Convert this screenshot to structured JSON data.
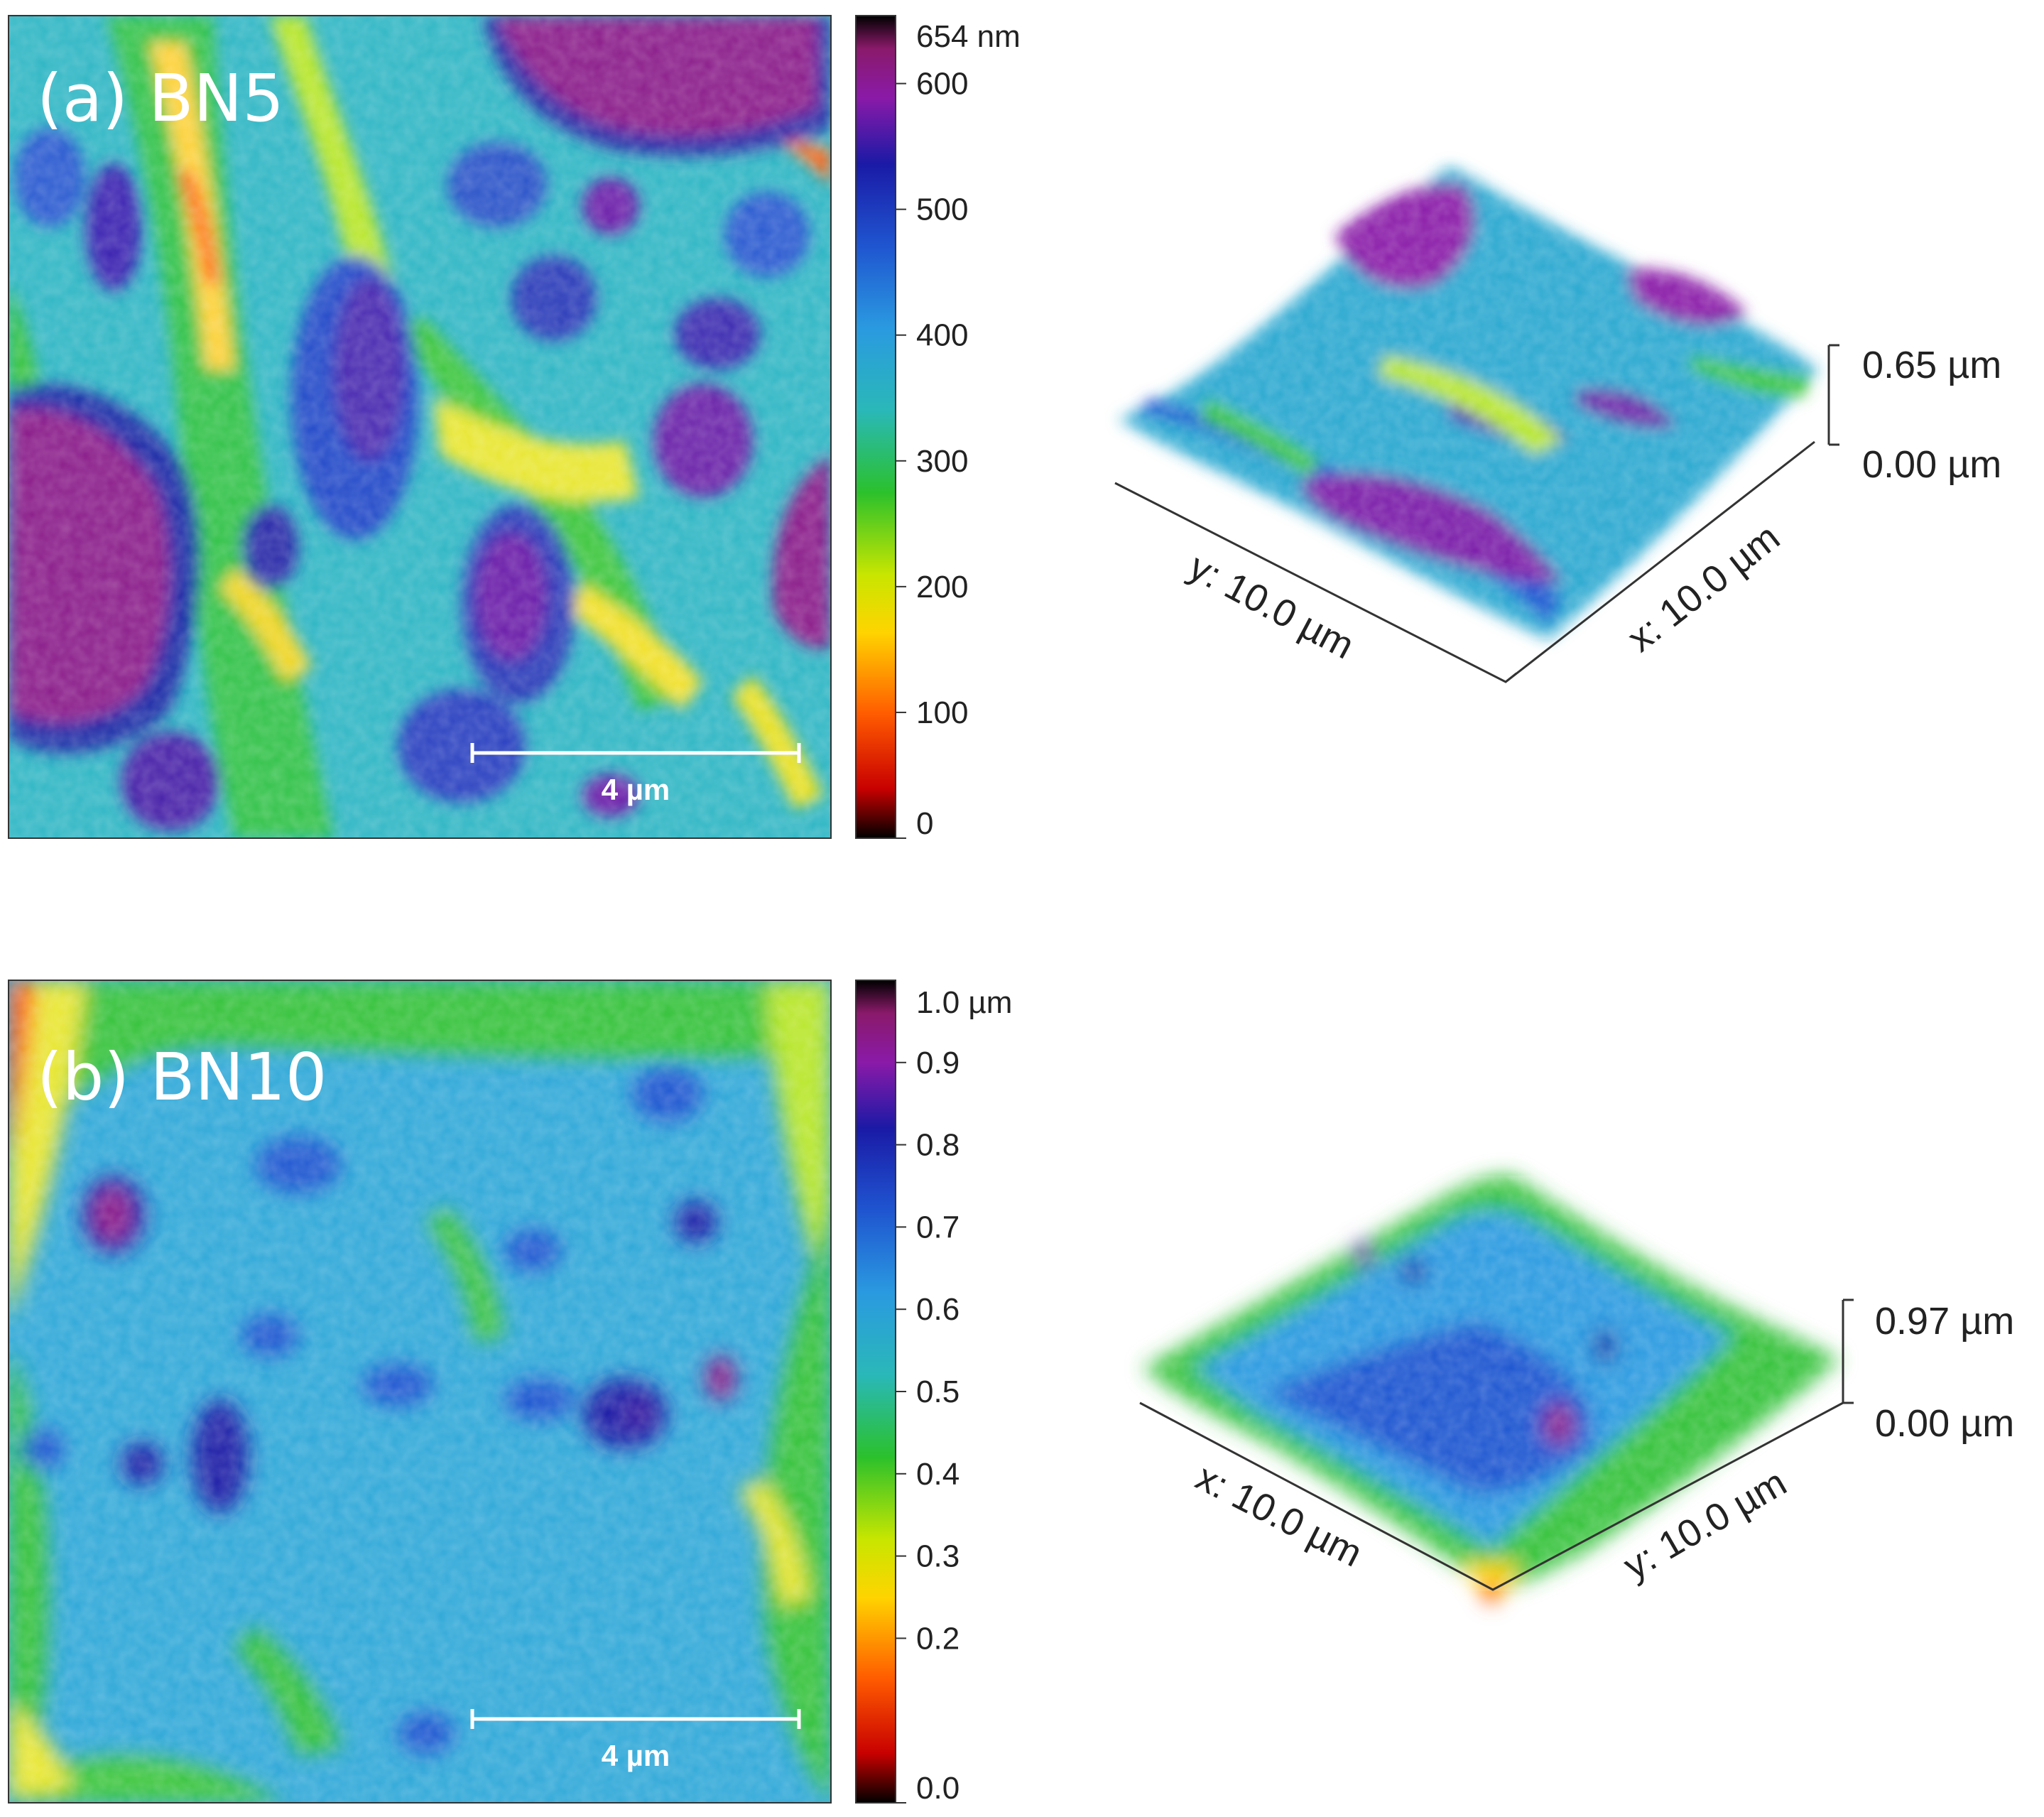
{
  "colors": {
    "scale": [
      "#000000",
      "#d40000",
      "#ff7f00",
      "#ffff00",
      "#2bc12b",
      "#29b9c9",
      "#1d6ed8",
      "#1a1aa6",
      "#8a1aa8",
      "#000000"
    ]
  },
  "panels": [
    {
      "title": "(a) BN5",
      "scale_bar": "4 µm",
      "colorbar": {
        "top_label": "654 nm",
        "ticks": [
          "600",
          "500",
          "400",
          "300",
          "200",
          "100",
          "0"
        ],
        "max": 654
      },
      "surface3d": {
        "z_max": "0.65 µm",
        "z_min": "0.00 µm",
        "left_axis": "y: 10.0 µm",
        "right_axis": "x: 10.0 µm"
      }
    },
    {
      "title": "(b) BN10",
      "scale_bar": "4 µm",
      "colorbar": {
        "top_label": "1.0 µm",
        "ticks": [
          "0.9",
          "0.8",
          "0.7",
          "0.6",
          "0.5",
          "0.4",
          "0.3",
          "0.2",
          "0.0"
        ],
        "max": 1.0
      },
      "surface3d": {
        "z_max": "0.97 µm",
        "z_min": "0.00 µm",
        "left_axis": "x: 10.0 µm",
        "right_axis": "y: 10.0 µm"
      }
    }
  ]
}
